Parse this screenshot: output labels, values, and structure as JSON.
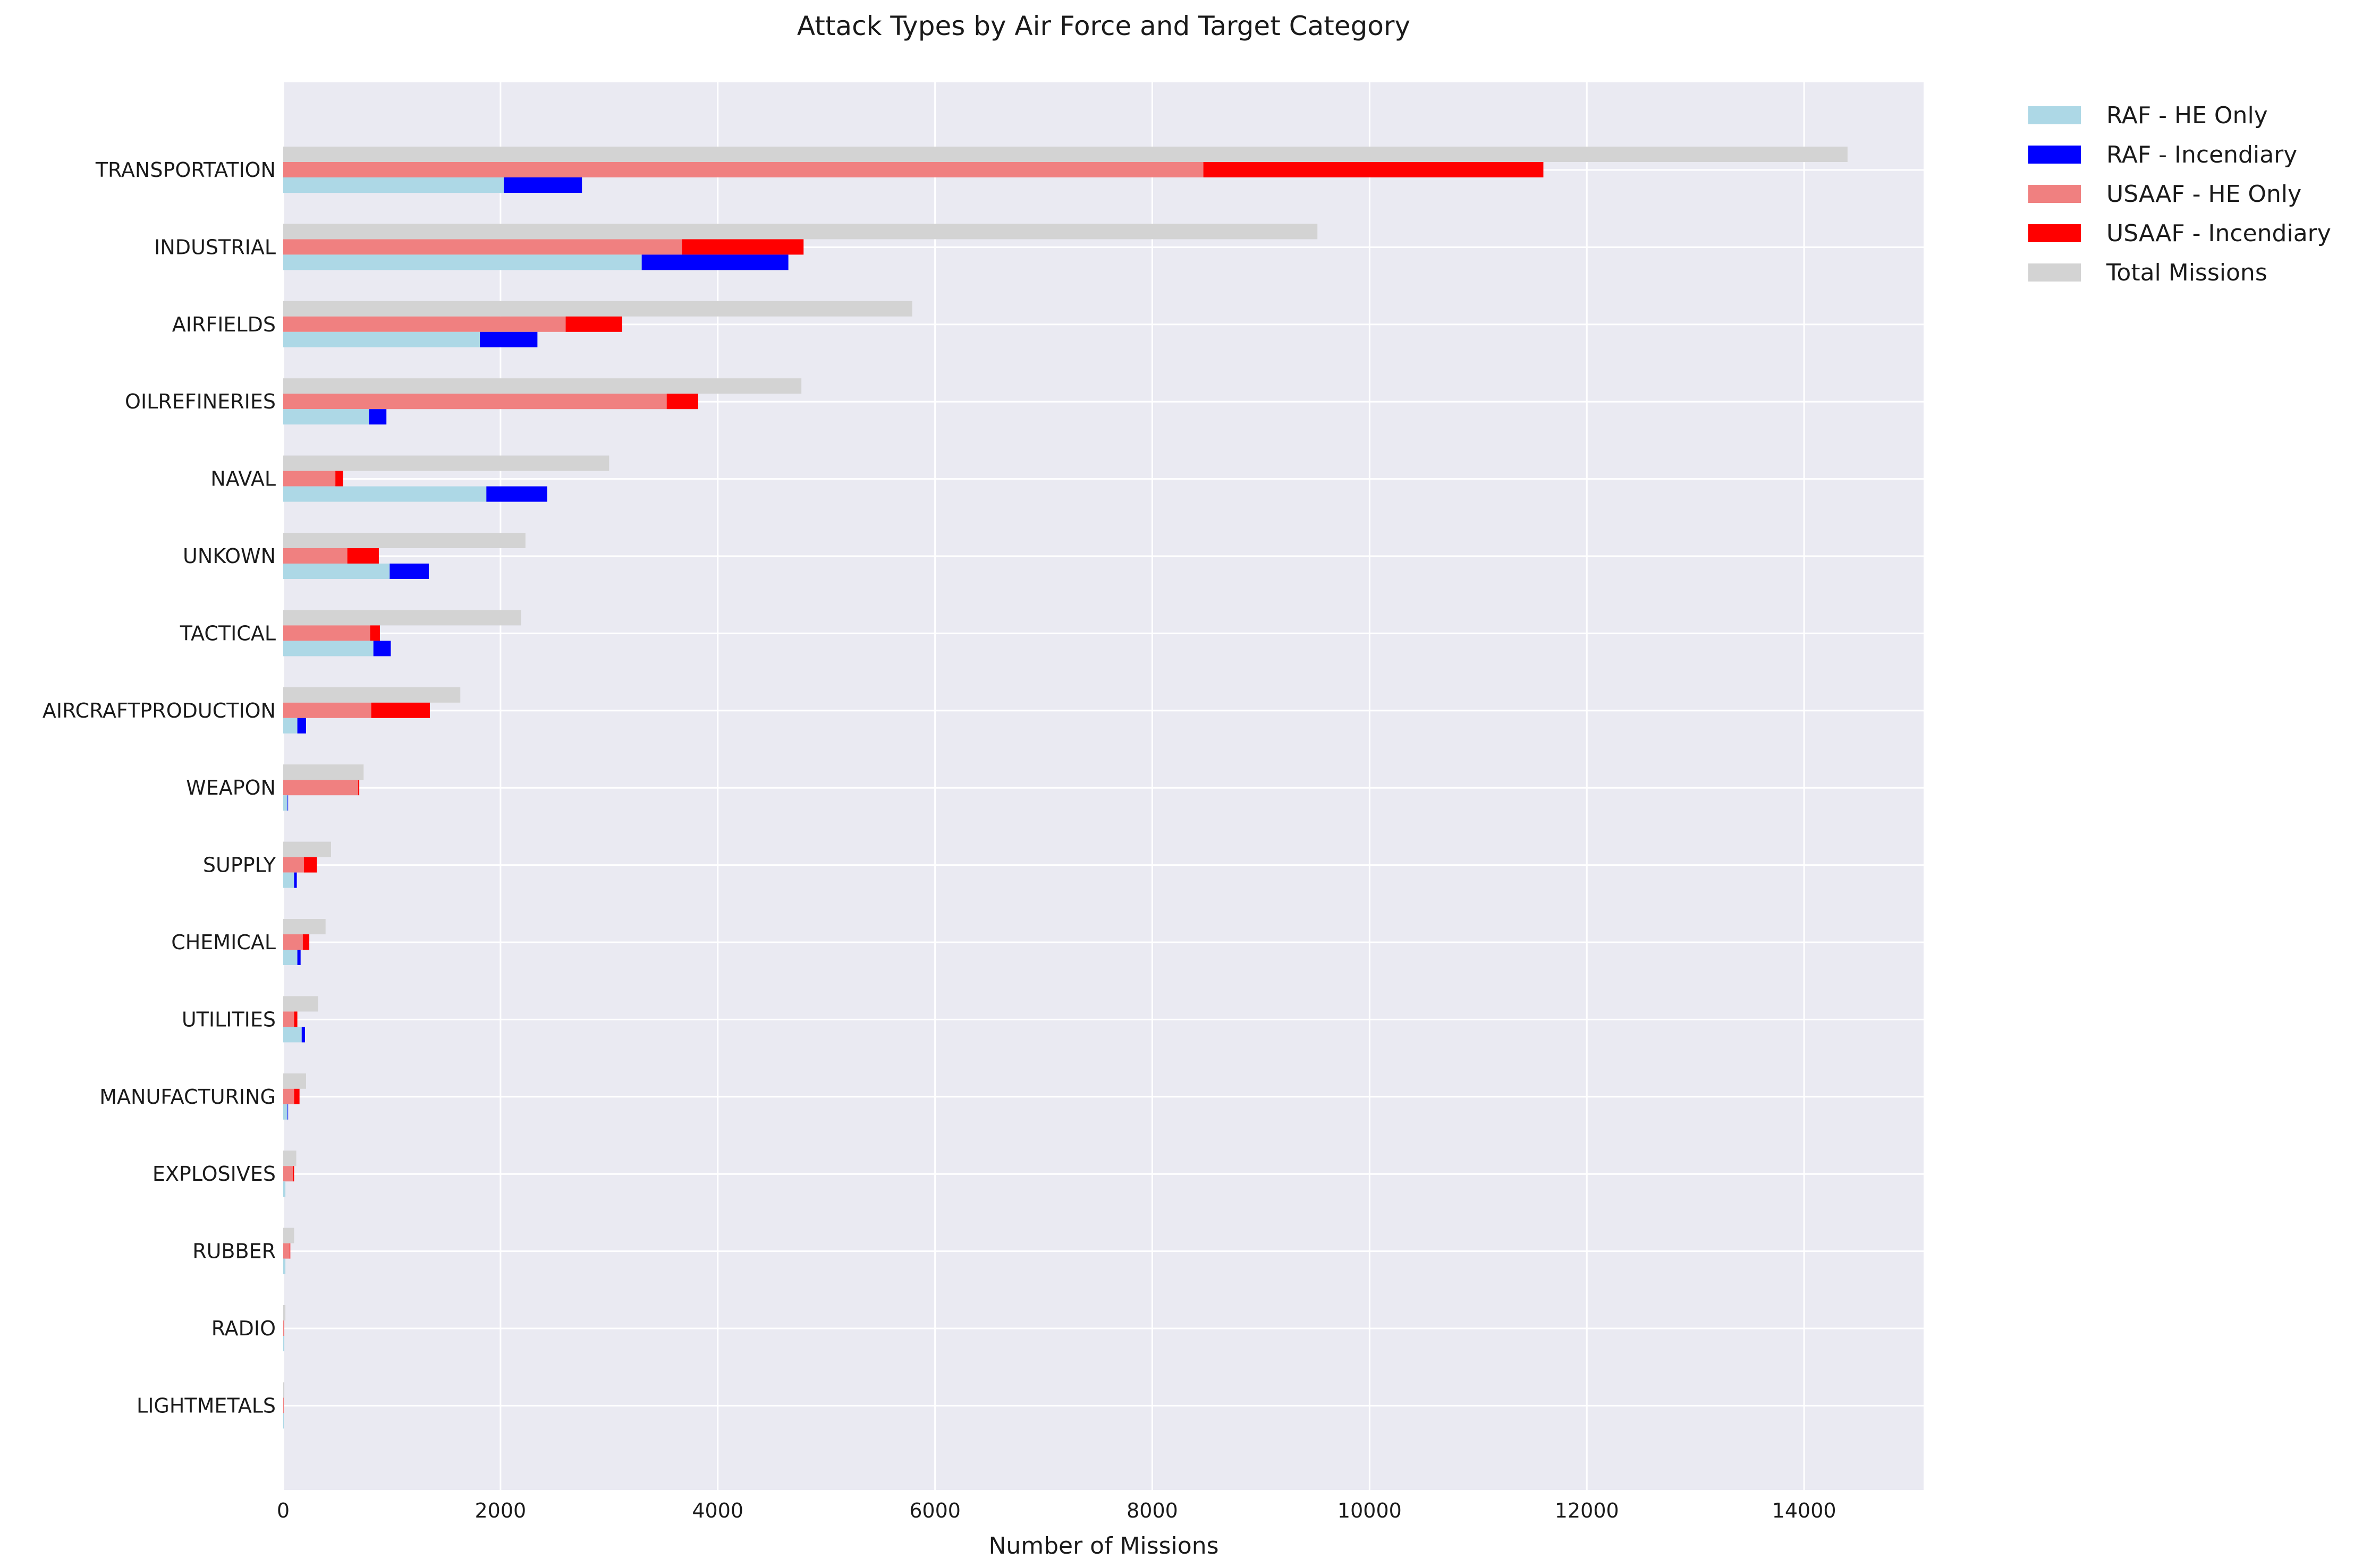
{
  "chart_data": {
    "type": "bar",
    "orientation": "horizontal",
    "title": "Attack Types by Air Force and Target Category",
    "xlabel": "Number of Missions",
    "ylabel": "",
    "xlim": [
      0,
      15100
    ],
    "xticks": [
      0,
      2000,
      4000,
      6000,
      8000,
      10000,
      12000,
      14000
    ],
    "xtick_labels": [
      "0",
      "2000",
      "4000",
      "6000",
      "8000",
      "10000",
      "12000",
      "14000"
    ],
    "grid": true,
    "legend_position": "outside-top-right",
    "categories": [
      "TRANSPORTATION",
      "INDUSTRIAL",
      "AIRFIELDS",
      "OILREFINERIES",
      "NAVAL",
      "UNKOWN",
      "TACTICAL",
      "AIRCRAFTPRODUCTION",
      "WEAPON",
      "SUPPLY",
      "CHEMICAL",
      "UTILITIES",
      "MANUFACTURING",
      "EXPLOSIVES",
      "RUBBER",
      "RADIO",
      "LIGHTMETALS"
    ],
    "series": [
      {
        "name": "RAF - HE Only",
        "color": "#add8e6",
        "stack": "RAF",
        "values": [
          2030,
          3300,
          1810,
          790,
          1870,
          980,
          830,
          130,
          40,
          100,
          130,
          170,
          40,
          20,
          20,
          10,
          5
        ]
      },
      {
        "name": "RAF - Incendiary",
        "color": "#0000ff",
        "stack": "RAF",
        "values": [
          720,
          1350,
          530,
          160,
          560,
          360,
          160,
          80,
          5,
          25,
          30,
          30,
          5,
          0,
          0,
          0,
          0
        ]
      },
      {
        "name": "USAAF - HE Only",
        "color": "#f08080",
        "stack": "USAAF",
        "values": [
          8470,
          3670,
          2600,
          3530,
          480,
          590,
          800,
          810,
          690,
          190,
          180,
          100,
          100,
          90,
          60,
          10,
          5
        ]
      },
      {
        "name": "USAAF - Incendiary",
        "color": "#ff0000",
        "stack": "USAAF",
        "values": [
          3130,
          1120,
          520,
          290,
          70,
          290,
          90,
          540,
          10,
          120,
          60,
          30,
          50,
          10,
          5,
          0,
          0
        ]
      },
      {
        "name": "Total Missions",
        "color": "#d3d3d3",
        "stack": "Total",
        "values": [
          14400,
          9520,
          5790,
          4770,
          3000,
          2230,
          2190,
          1630,
          740,
          440,
          390,
          320,
          210,
          120,
          100,
          20,
          10
        ]
      }
    ]
  }
}
